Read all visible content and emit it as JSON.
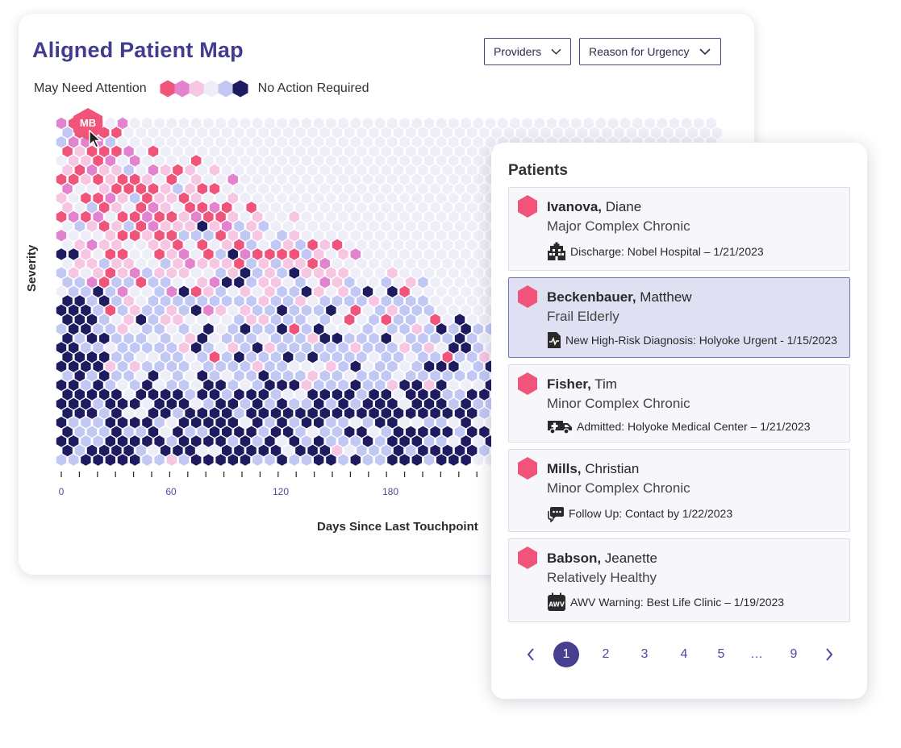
{
  "map_card": {
    "title": "Aligned Patient Map",
    "filters": [
      {
        "label": "Providers"
      },
      {
        "label": "Reason for Urgency"
      }
    ],
    "legend": {
      "left_label": "May Need Attention",
      "right_label": "No Action Required",
      "scale_colors": [
        "#f0547a",
        "#e383d0",
        "#f6c6e2",
        "#eeeef8",
        "#c2c8f4",
        "#1e1b60"
      ]
    },
    "selected_marker": {
      "initials": "MB",
      "color": "#f0547a"
    }
  },
  "chart_data": {
    "type": "heatmap",
    "xlabel": "Days Since Last Touchpoint",
    "ylabel": "Severity",
    "x_ticks": [
      0,
      60,
      120,
      180
    ],
    "color_scale": {
      "levels": [
        "May Need Attention",
        "",
        "",
        "",
        "",
        "No Action Required"
      ],
      "colors": [
        "#f0547a",
        "#e383d0",
        "#f6c6e2",
        "#eeeef8",
        "#c2c8f4",
        "#1e1b60"
      ]
    }
  },
  "patients_panel": {
    "title": "Patients",
    "patients": [
      {
        "last_name": "Ivanova,",
        "first_name": "Diane",
        "category": "Major Complex Chronic",
        "event": "Discharge: Nobel Hospital – 1/21/2023",
        "event_icon": "hospital-building-icon",
        "selected": false
      },
      {
        "last_name": "Beckenbauer,",
        "first_name": "Matthew",
        "category": "Frail Elderly",
        "event": "New High-Risk Diagnosis: Holyoke Urgent - 1/15/2023",
        "event_icon": "medical-report-icon",
        "selected": true
      },
      {
        "last_name": "Fisher,",
        "first_name": "Tim",
        "category": "Minor Complex Chronic",
        "event": "Admitted: Holyoke Medical Center – 1/21/2023",
        "event_icon": "ambulance-icon",
        "selected": false
      },
      {
        "last_name": "Mills,",
        "first_name": "Christian",
        "category": "Minor Complex Chronic",
        "event": "Follow Up: Contact by 1/22/2023",
        "event_icon": "chat-bubble-icon",
        "selected": false
      },
      {
        "last_name": "Babson,",
        "first_name": "Jeanette",
        "category": "Relatively Healthy",
        "event": "AWV Warning: Best Life Clinic – 1/19/2023",
        "event_icon": "awv-calendar-icon",
        "selected": false
      }
    ],
    "pagination": {
      "pages": [
        "1",
        "2",
        "3",
        "4",
        "5",
        "…",
        "9"
      ],
      "current": "1"
    }
  },
  "colors": {
    "brand": "#413c8e",
    "alert": "#f0547a",
    "dark_navy": "#1e1b60",
    "selected_row": "#dfe0f2"
  }
}
